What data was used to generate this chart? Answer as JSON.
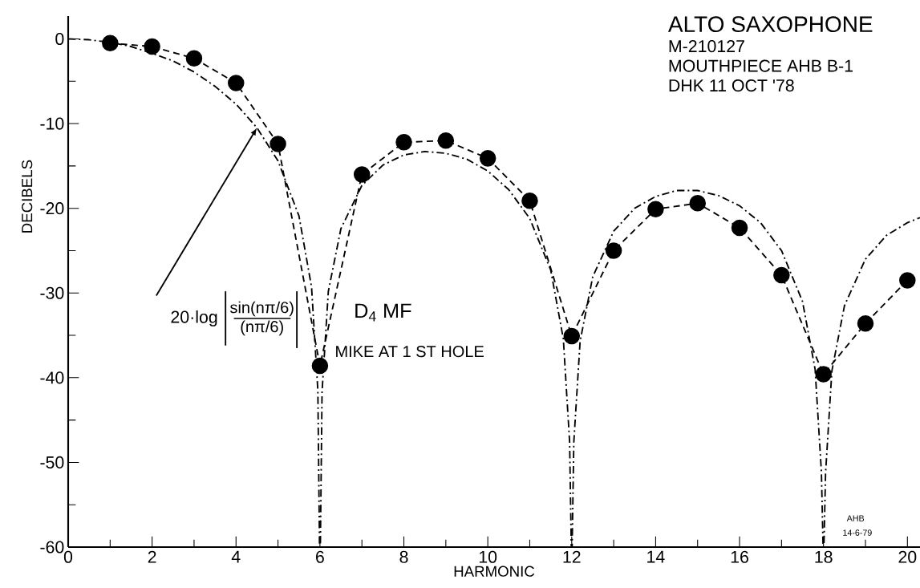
{
  "chart_data": {
    "type": "line",
    "title": "ALTO SAXOPHONE",
    "xlabel": "HARMONIC",
    "ylabel": "DECIBELS",
    "xlim": [
      0,
      20.3
    ],
    "xticks": [
      0,
      2,
      4,
      6,
      8,
      10,
      12,
      14,
      16,
      18,
      20
    ],
    "ylim": [
      -60,
      2.7
    ],
    "yticks": [
      -60,
      -50,
      -40,
      -30,
      -20,
      -10,
      0
    ],
    "series": [
      {
        "color": "#000000",
        "marker": "circle",
        "line_style": "dashed",
        "x": [
          1,
          2,
          3,
          4,
          5,
          6,
          7,
          8,
          9,
          10,
          11,
          12,
          13,
          14,
          15,
          16,
          17,
          18,
          19,
          20
        ],
        "values": [
          -0.5,
          -0.9,
          -2.3,
          -5.2,
          -12.4,
          -38.6,
          -16.0,
          -12.2,
          -12.0,
          -14.1,
          -19.1,
          -35.1,
          -25.0,
          -20.1,
          -19.4,
          -22.3,
          -27.9,
          -39.6,
          -33.6,
          -28.5
        ]
      },
      {
        "color": "#000000",
        "marker": "none",
        "line_style": "dashdot",
        "x": [
          0,
          0.5,
          1,
          1.5,
          2,
          2.5,
          3,
          3.5,
          4,
          4.5,
          5,
          5.5,
          5.8,
          5.95,
          5.99,
          6.01,
          6.05,
          6.2,
          6.5,
          7,
          7.5,
          8,
          8.5,
          9,
          9.5,
          10,
          10.5,
          11,
          11.5,
          11.8,
          11.95,
          11.99,
          12.01,
          12.05,
          12.2,
          12.5,
          13,
          13.5,
          14,
          14.5,
          15,
          15.5,
          16,
          16.5,
          17,
          17.5,
          17.8,
          17.95,
          17.99,
          18.01,
          18.05,
          18.2,
          18.5,
          19,
          19.5,
          20,
          20.3
        ],
        "values": [
          0,
          -0.1,
          -0.4,
          -0.9,
          -1.7,
          -2.6,
          -3.9,
          -5.6,
          -7.7,
          -10.5,
          -14.4,
          -20.9,
          -29.3,
          -41.5,
          -60,
          -60,
          -41.7,
          -29.8,
          -22.4,
          -17.3,
          -14.9,
          -13.7,
          -13.3,
          -13.5,
          -14.2,
          -15.6,
          -17.8,
          -21.2,
          -27.3,
          -35.4,
          -47.6,
          -60,
          -60,
          -47.6,
          -35.7,
          -28.1,
          -22.7,
          -20.0,
          -18.6,
          -17.9,
          -17.9,
          -18.5,
          -19.7,
          -21.7,
          -25.0,
          -31.0,
          -39.0,
          -51.1,
          -60,
          -60,
          -51.2,
          -39.2,
          -31.5,
          -26.0,
          -23.2,
          -21.7,
          -21.1
        ]
      }
    ],
    "annotations": [
      "M-210127",
      "MOUTHPIECE AHB B-1",
      "DHK 11 OCT '78",
      {
        "text": "20·log",
        "x": 4.5,
        "y": -10.5
      },
      "sin(nπ/6)",
      "(nπ/6)",
      "D$_{4}$ MF",
      "MIKE AT 1 ST HOLE",
      "AHB",
      "14-6-79"
    ]
  }
}
